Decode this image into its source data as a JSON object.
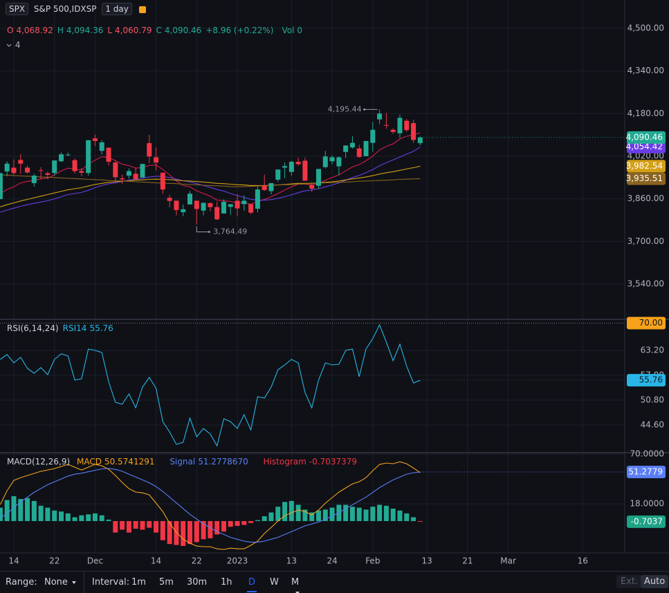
{
  "header": {
    "symbol": "SPX",
    "name": "S&P 500,IDXSP",
    "interval": "1 day",
    "collapsed_count": 4
  },
  "toolbar": {
    "range_label": "Range:",
    "range_value": "None",
    "interval_label": "Interval:",
    "intervals": [
      "1m",
      "5m",
      "30m",
      "1h",
      "D",
      "W",
      "M"
    ],
    "active": "D",
    "ext": "Ext.",
    "auto": "Auto"
  },
  "chart_data": [
    {
      "type": "candlestick",
      "up_color": "#22ab94",
      "down_color": "#f23645",
      "legend": [
        {
          "key": "O",
          "value": "4,068.92",
          "color": "#f7525f"
        },
        {
          "key": "H",
          "value": "4,094.36",
          "color": "#22ab94"
        },
        {
          "key": "L",
          "value": "4,060.79",
          "color": "#f7525f"
        },
        {
          "key": "C",
          "value": "4,090.46",
          "color": "#22ab94"
        }
      ],
      "change": "+8.96 (+0.22%)",
      "volume_key": "Vol",
      "volume": 0,
      "close_label": "4,090.46",
      "high_label": "4,195.44",
      "low_label": "3,764.49",
      "xlim": [
        -0.04,
        92.2
      ],
      "xticks": [
        {
          "value": 2,
          "label": "14"
        },
        {
          "value": 8,
          "label": "22"
        },
        {
          "value": 14,
          "label": "Dec"
        },
        {
          "value": 23,
          "label": "14"
        },
        {
          "value": 29,
          "label": "22"
        },
        {
          "value": 35,
          "label": "2023"
        },
        {
          "value": 43,
          "label": "13"
        },
        {
          "value": 49,
          "label": "24"
        },
        {
          "value": 55,
          "label": "Feb"
        },
        {
          "value": 63,
          "label": "13"
        },
        {
          "value": 69,
          "label": "21"
        },
        {
          "value": 75,
          "label": "Mar"
        },
        {
          "value": 86,
          "label": "16"
        }
      ],
      "ylim": [
        3408,
        4606
      ],
      "grid": true,
      "yticks": [
        {
          "value": 3540,
          "label": "3,540.00"
        },
        {
          "value": 3700,
          "label": "3,700.00"
        },
        {
          "value": 3860,
          "label": "3,860.00"
        },
        {
          "value": 4020,
          "label": "4,020.00"
        },
        {
          "value": 4180,
          "label": "4,180.00"
        },
        {
          "value": 4340,
          "label": "4,340.00"
        },
        {
          "value": 4500,
          "label": "4,500.00"
        }
      ],
      "open": [
        3859,
        3963,
        3977,
        4006,
        3977,
        3919,
        3967,
        3956,
        3957,
        4001,
        4024,
        4005,
        3964,
        3957,
        4087,
        4040,
        4052,
        3996,
        3937,
        3947,
        3954,
        3940,
        4069,
        4016,
        3958,
        3864,
        3853,
        3810,
        3839,
        3853,
        3816,
        3844,
        3829,
        3805,
        3830,
        3853,
        3840,
        3840,
        3823,
        3910,
        3889,
        3932,
        3977,
        3961,
        3999,
        4003,
        3911,
        3909,
        3979,
        4001,
        3982,
        4036,
        4053,
        4049,
        4020,
        4070,
        4158,
        4137,
        4119,
        4106,
        4153,
        4144,
        4068.92
      ],
      "high": [
        3958,
        4001,
        4008,
        4028,
        3984,
        3955,
        3979,
        3962,
        4004,
        4034,
        4034,
        4012,
        3976,
        4080,
        4101,
        4080,
        4052,
        4001,
        3951,
        3974,
        3977,
        3991,
        4101,
        4053,
        3959,
        3875,
        3854,
        3839,
        3889,
        3853,
        3846,
        3846,
        3849,
        3858,
        3839,
        3878,
        3873,
        3840,
        3906,
        3951,
        3919,
        3970,
        3997,
        4003,
        4015,
        4015,
        3922,
        3972,
        4040,
        4023,
        4019,
        4061,
        4095,
        4063,
        4077,
        4148,
        4195.44,
        4182,
        4125,
        4176,
        4160,
        4157,
        4094.36
      ],
      "low": [
        3859,
        3944,
        3949,
        3953,
        3955,
        3906,
        3933,
        3933,
        3947,
        3998,
        4020,
        3955,
        3945,
        3947,
        4058,
        4026,
        3985,
        3919,
        3916,
        3935,
        3934,
        3939,
        3994,
        3966,
        3879,
        3828,
        3798,
        3795,
        3839,
        3764.49,
        3798,
        3813,
        3781,
        3805,
        3800,
        3794,
        3815,
        3802,
        3809,
        3890,
        3877,
        3924,
        3937,
        3947,
        3984,
        3928,
        3886,
        3897,
        3974,
        3990,
        3949,
        4013,
        4048,
        4015,
        4020,
        4037,
        4141,
        4123,
        4104,
        4088,
        4111,
        4070,
        4060.79
      ],
      "close": [
        3956,
        3992,
        3957,
        3992,
        3959,
        3947,
        3965,
        3950,
        4004,
        4027,
        4026,
        3964,
        3958,
        4080,
        4077,
        4072,
        3999,
        3941,
        3933,
        3964,
        3934,
        3991,
        4019,
        3996,
        3895,
        3852,
        3818,
        3821,
        3879,
        3822,
        3845,
        3829,
        3783,
        3849,
        3840,
        3824,
        3853,
        3808,
        3895,
        3893,
        3919,
        3970,
        3983,
        3999,
        3990,
        3928,
        3898,
        3972,
        4019,
        4016,
        4016,
        4060,
        4070,
        4017,
        4077,
        4119,
        4180,
        4136,
        4111,
        4164,
        4118,
        4081,
        4090.46
      ],
      "series": [
        {
          "color": "#d81b4a",
          "values": [
            3880,
            3895,
            3905,
            3920,
            3925,
            3930,
            3935,
            3938,
            3950,
            3965,
            3975,
            3972,
            3968,
            3990,
            4005,
            4018,
            4015,
            4003,
            3990,
            3985,
            3975,
            3978,
            3985,
            3987,
            3970,
            3950,
            3928,
            3910,
            3905,
            3890,
            3880,
            3870,
            3855,
            3853,
            3850,
            3845,
            3846,
            3840,
            3850,
            3858,
            3868,
            3880,
            3893,
            3905,
            3915,
            3915,
            3912,
            3918,
            3930,
            3940,
            3950,
            3965,
            3980,
            3988,
            4003,
            4020,
            4043,
            4057,
            4066,
            4085,
            4095,
            4100,
            4108
          ]
        },
        {
          "color": "#6a3de8",
          "badge_label": "4,054.42",
          "values": [
            3810,
            3818,
            3825,
            3832,
            3838,
            3843,
            3848,
            3853,
            3860,
            3868,
            3876,
            3880,
            3884,
            3892,
            3902,
            3910,
            3916,
            3920,
            3925,
            3930,
            3933,
            3937,
            3942,
            3945,
            3944,
            3940,
            3934,
            3928,
            3924,
            3917,
            3910,
            3903,
            3895,
            3889,
            3880,
            3872,
            3866,
            3858,
            3855,
            3855,
            3857,
            3862,
            3868,
            3875,
            3883,
            3890,
            3893,
            3898,
            3905,
            3912,
            3920,
            3930,
            3940,
            3948,
            3958,
            3970,
            3984,
            3996,
            4006,
            4017,
            4028,
            4038,
            4054.42
          ]
        },
        {
          "color": "#d4a017",
          "badge_label": "3,982.54",
          "values": [
            3830,
            3838,
            3845,
            3852,
            3858,
            3864,
            3870,
            3876,
            3882,
            3888,
            3894,
            3898,
            3902,
            3908,
            3914,
            3918,
            3922,
            3924,
            3926,
            3928,
            3930,
            3931,
            3933,
            3934,
            3933,
            3932,
            3930,
            3928,
            3927,
            3925,
            3923,
            3921,
            3918,
            3917,
            3915,
            3913,
            3912,
            3910,
            3910,
            3910,
            3911,
            3912,
            3914,
            3916,
            3918,
            3918,
            3918,
            3920,
            3922,
            3924,
            3927,
            3931,
            3935,
            3938,
            3942,
            3947,
            3953,
            3958,
            3962,
            3967,
            3972,
            3977,
            3982.54
          ]
        },
        {
          "color": "#8a6320",
          "badge_label": "3,935.51",
          "values": [
            3950,
            3949,
            3947,
            3946,
            3945,
            3944,
            3942,
            3941,
            3940,
            3938,
            3937,
            3936,
            3935,
            3933,
            3932,
            3931,
            3929,
            3928,
            3927,
            3926,
            3924,
            3923,
            3922,
            3920,
            3919,
            3918,
            3917,
            3915,
            3914,
            3913,
            3911,
            3910,
            3909,
            3908,
            3906,
            3905,
            3906,
            3907,
            3908,
            3909,
            3910,
            3912,
            3913,
            3914,
            3915,
            3916,
            3917,
            3919,
            3920,
            3921,
            3922,
            3923,
            3924,
            3926,
            3927,
            3928,
            3929,
            3930,
            3931,
            3933,
            3934,
            3935,
            3935.51
          ]
        }
      ]
    },
    {
      "type": "line",
      "title": "RSI(6,14,24)",
      "ylim": [
        37.7,
        70.95
      ],
      "grid": true,
      "yticks": [
        {
          "value": 44.6,
          "label": "44.60"
        },
        {
          "value": 50.8,
          "label": "50.80"
        },
        {
          "value": 57,
          "label": "57.00"
        },
        {
          "value": 63.2,
          "label": "63.20"
        }
      ],
      "band": {
        "value": 70,
        "label": "70.00",
        "color": "#f7a21b"
      },
      "series": [
        {
          "name": "RSI14",
          "color": "#29b6e6",
          "values": [
            60.96,
            62.17,
            60.1,
            61.48,
            58.72,
            57.52,
            58.9,
            57.17,
            60.96,
            62.34,
            61.82,
            55.8,
            56.14,
            63.54,
            63.2,
            62.68,
            55.45,
            50.28,
            49.77,
            52.35,
            48.9,
            54.07,
            56.48,
            53.73,
            45.46,
            42.88,
            39.78,
            40.3,
            46.32,
            41.67,
            43.74,
            42.36,
            39.43,
            46.15,
            45.46,
            43.74,
            47.18,
            43.39,
            51.66,
            51.31,
            54.07,
            58.38,
            59.58,
            60.96,
            60.1,
            52.69,
            48.9,
            55.8,
            60.1,
            59.58,
            59.75,
            63.2,
            63.54,
            56.65,
            63.54,
            66.13,
            69.57,
            65.27,
            60.62,
            64.75,
            59.24,
            55.1,
            55.76
          ]
        }
      ]
    },
    {
      "type": "macd",
      "title": "MACD(12,26,9)",
      "ylim": [
        -33.28,
        71.44
      ],
      "grid": true,
      "yticks": [
        {
          "value": 18,
          "label": "18.0000"
        },
        {
          "value": 70,
          "label": "70.0000"
        }
      ],
      "series": [
        {
          "name": "MACD",
          "color": "#f7a21b",
          "values": [
            17.3,
            31.7,
            42.5,
            45.4,
            47.6,
            49.8,
            52.0,
            53.4,
            54.8,
            57.0,
            59.2,
            56.3,
            53.4,
            56.3,
            59.2,
            57.7,
            54.1,
            47.6,
            40.4,
            33.9,
            30.3,
            29.5,
            27.4,
            18.7,
            10.0,
            -2.2,
            -11.6,
            -18.9,
            -23.2,
            -26.1,
            -26.8,
            -26.8,
            -29.0,
            -29.7,
            -28.3,
            -29.0,
            -29.0,
            -25.3,
            -21.0,
            -13.0,
            -6.6,
            0,
            5.7,
            8.6,
            11.5,
            10.0,
            6.4,
            11.5,
            18.7,
            24.5,
            30.3,
            34.6,
            38.9,
            41.1,
            45.4,
            52.6,
            59.2,
            60.6,
            59.9,
            62.0,
            59.9,
            55.5,
            50.5741291
          ]
        },
        {
          "name": "Signal",
          "color": "#5b7ff5",
          "legend_label": "51.2778670",
          "badge_label": "51.2779",
          "values": [
            3,
            8,
            14,
            20,
            25,
            30,
            34,
            38,
            41,
            44,
            47,
            49,
            50,
            51.5,
            53,
            54.5,
            55,
            54,
            52,
            49,
            46,
            43,
            40,
            36,
            31,
            25,
            19,
            13,
            7,
            2,
            -3,
            -7,
            -11,
            -14,
            -17,
            -19,
            -21,
            -22,
            -22,
            -21,
            -19,
            -17,
            -14,
            -11,
            -8,
            -5,
            -3,
            -1,
            2,
            5,
            9,
            13,
            17,
            21,
            25,
            30,
            35,
            39,
            43,
            46,
            49,
            50.5,
            51.277867
          ]
        },
        {
          "name": "Histogram",
          "color": "#f23645",
          "up_color": "#22ab94",
          "down_color": "#f23645",
          "legend_label": "-0.7037379",
          "badge_label": "-0.7037",
          "badge_color": "#1ea386",
          "values": [
            14,
            22,
            26,
            23,
            24,
            21,
            16,
            14,
            11,
            10,
            8,
            4,
            6,
            7,
            8,
            6,
            1.5,
            -12,
            -9,
            -12,
            -8,
            -9,
            -7,
            -12,
            -20,
            -24,
            -25,
            -26,
            -24,
            -22,
            -19,
            -18,
            -14,
            -11,
            -6,
            -5,
            -4,
            -2,
            1,
            5,
            9,
            15,
            20,
            21,
            17,
            12,
            9,
            11,
            12,
            14,
            17,
            17,
            15,
            14,
            12,
            15,
            17,
            16,
            13,
            11,
            8,
            4,
            -0.7037379
          ]
        }
      ]
    }
  ]
}
